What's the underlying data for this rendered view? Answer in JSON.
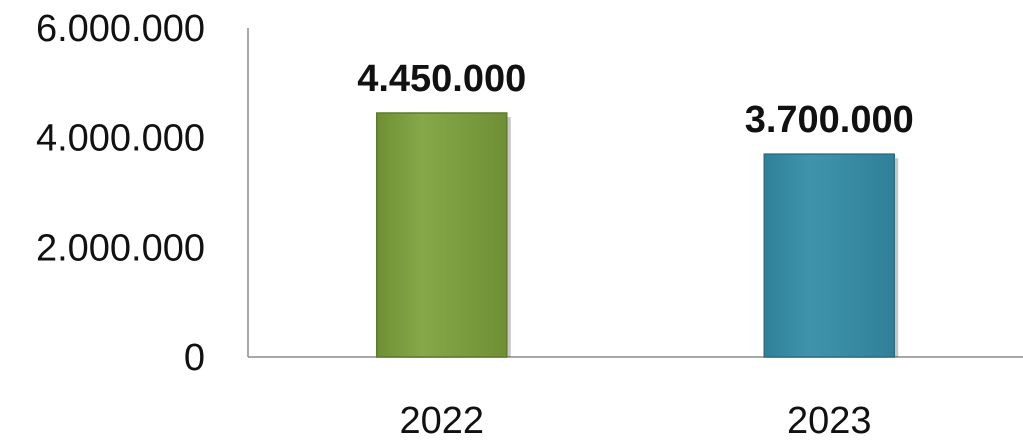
{
  "chart_data": {
    "type": "bar",
    "categories": [
      "2022",
      "2023"
    ],
    "values": [
      4450000,
      3700000
    ],
    "data_labels": [
      "4.450.000",
      "3.700.000"
    ],
    "bar_colors": [
      "#7f9f40",
      "#3a8ea6"
    ],
    "bar_edge_colors": [
      "#5f7a2c",
      "#2b6f83"
    ],
    "title": "",
    "xlabel": "",
    "ylabel": "",
    "ylim": [
      0,
      6000000
    ],
    "yticks": [
      0,
      2000000,
      4000000,
      6000000
    ],
    "ytick_labels": [
      "0",
      "2.000.000",
      "4.000.000",
      "6.000.000"
    ],
    "grid": false,
    "legend": "none"
  }
}
